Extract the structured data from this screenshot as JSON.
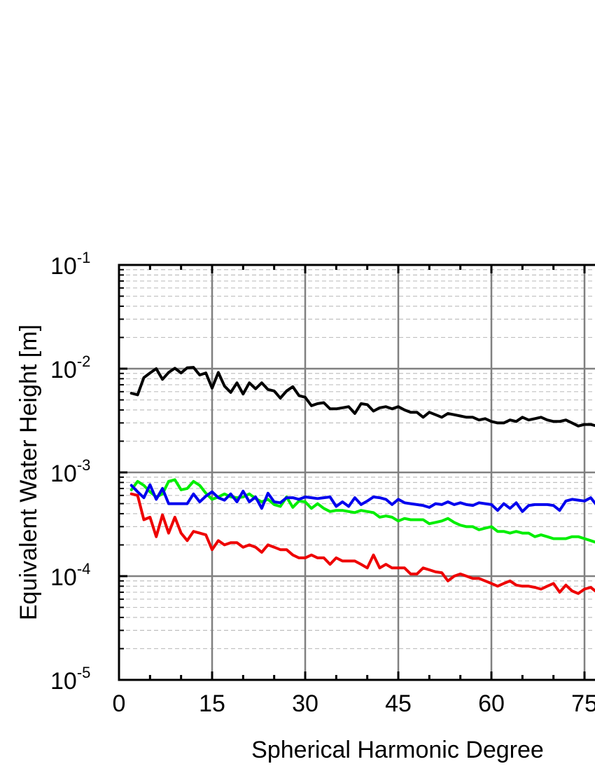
{
  "chart_data": {
    "type": "line",
    "title": "",
    "xlabel": "Spherical Harmonic Degree",
    "ylabel": "Equivalent Water Height [m]",
    "x_scale": "linear",
    "y_scale": "log",
    "xlim": [
      0,
      77
    ],
    "ylim": [
      1e-05,
      0.1
    ],
    "x_ticks": [
      {
        "value": 0,
        "label": "0"
      },
      {
        "value": 15,
        "label": "15"
      },
      {
        "value": 30,
        "label": "30"
      },
      {
        "value": 45,
        "label": "45"
      },
      {
        "value": 60,
        "label": "60"
      },
      {
        "value": 75,
        "label": "75"
      }
    ],
    "y_ticks": [
      {
        "value": 0.1,
        "base": "10",
        "exp": "-1"
      },
      {
        "value": 0.01,
        "base": "10",
        "exp": "-2"
      },
      {
        "value": 0.001,
        "base": "10",
        "exp": "-3"
      },
      {
        "value": 0.0001,
        "base": "10",
        "exp": "-4"
      },
      {
        "value": 1e-05,
        "base": "10",
        "exp": "-5"
      }
    ],
    "grid": {
      "major": true,
      "minor_y": true,
      "major_color": "#808080",
      "minor_color": "#c0c0c0"
    },
    "legend": "none",
    "series": [
      {
        "color": "#000000",
        "x": [
          2,
          3,
          4,
          5,
          6,
          7,
          8,
          9,
          10,
          11,
          12,
          13,
          14,
          15,
          16,
          17,
          18,
          19,
          20,
          21,
          22,
          23,
          24,
          25,
          26,
          27,
          28,
          29,
          30,
          31,
          32,
          33,
          34,
          35,
          36,
          37,
          38,
          39,
          40,
          41,
          42,
          43,
          44,
          45,
          46,
          47,
          48,
          49,
          50,
          51,
          52,
          53,
          54,
          55,
          56,
          57,
          58,
          59,
          60,
          61,
          62,
          63,
          64,
          65,
          66,
          67,
          68,
          69,
          70,
          71,
          72,
          73,
          74,
          75,
          76,
          77
        ],
        "values": [
          0.0058,
          0.0056,
          0.0082,
          0.0091,
          0.01,
          0.0079,
          0.0092,
          0.0101,
          0.0091,
          0.0102,
          0.0103,
          0.0087,
          0.0091,
          0.0065,
          0.0092,
          0.0068,
          0.0059,
          0.0073,
          0.0057,
          0.0073,
          0.0064,
          0.0073,
          0.0063,
          0.0061,
          0.0052,
          0.0061,
          0.0067,
          0.0055,
          0.0053,
          0.0044,
          0.0046,
          0.0047,
          0.0041,
          0.0041,
          0.0042,
          0.0043,
          0.0037,
          0.0046,
          0.0045,
          0.0039,
          0.0042,
          0.0043,
          0.0041,
          0.0043,
          0.004,
          0.0038,
          0.0038,
          0.0034,
          0.0038,
          0.0036,
          0.0034,
          0.0037,
          0.0036,
          0.0035,
          0.0034,
          0.0034,
          0.0032,
          0.0033,
          0.0031,
          0.003,
          0.003,
          0.0032,
          0.0031,
          0.0034,
          0.0032,
          0.0033,
          0.0034,
          0.0032,
          0.0031,
          0.0031,
          0.0032,
          0.003,
          0.0028,
          0.0029,
          0.0029,
          0.0028
        ]
      },
      {
        "color": "#00ee00",
        "x": [
          2,
          3,
          4,
          5,
          6,
          7,
          8,
          9,
          10,
          11,
          12,
          13,
          14,
          15,
          16,
          17,
          18,
          19,
          20,
          21,
          22,
          23,
          24,
          25,
          26,
          27,
          28,
          29,
          30,
          31,
          32,
          33,
          34,
          35,
          36,
          37,
          38,
          39,
          40,
          41,
          42,
          43,
          44,
          45,
          46,
          47,
          48,
          49,
          50,
          51,
          52,
          53,
          54,
          55,
          56,
          57,
          58,
          59,
          60,
          61,
          62,
          63,
          64,
          65,
          66,
          67,
          68,
          69,
          70,
          71,
          72,
          73,
          74,
          75,
          76,
          77
        ],
        "values": [
          0.00068,
          0.00082,
          0.00075,
          0.00065,
          0.00058,
          0.00062,
          0.00082,
          0.00085,
          0.00068,
          0.0007,
          0.00082,
          0.00075,
          0.00063,
          0.00055,
          0.00058,
          0.00062,
          0.00058,
          0.00057,
          0.00058,
          0.00062,
          0.00056,
          0.00052,
          0.00055,
          0.00049,
          0.00047,
          0.00058,
          0.00046,
          0.00053,
          0.00052,
          0.00045,
          0.0005,
          0.00045,
          0.00042,
          0.00043,
          0.00043,
          0.00042,
          0.00041,
          0.00043,
          0.00042,
          0.00041,
          0.00037,
          0.00038,
          0.00037,
          0.00034,
          0.00036,
          0.00035,
          0.00035,
          0.00035,
          0.00032,
          0.00033,
          0.00034,
          0.00036,
          0.00033,
          0.00031,
          0.0003,
          0.0003,
          0.00028,
          0.00029,
          0.0003,
          0.00027,
          0.00027,
          0.00026,
          0.00027,
          0.00026,
          0.00026,
          0.00024,
          0.00025,
          0.00024,
          0.00023,
          0.00023,
          0.00023,
          0.00024,
          0.00024,
          0.00023,
          0.00022,
          0.00021
        ]
      },
      {
        "color": "#0000ee",
        "x": [
          2,
          3,
          4,
          5,
          6,
          7,
          8,
          9,
          10,
          11,
          12,
          13,
          14,
          15,
          16,
          17,
          18,
          19,
          20,
          21,
          22,
          23,
          24,
          25,
          26,
          27,
          28,
          29,
          30,
          31,
          32,
          33,
          34,
          35,
          36,
          37,
          38,
          39,
          40,
          41,
          42,
          43,
          44,
          45,
          46,
          47,
          48,
          49,
          50,
          51,
          52,
          53,
          54,
          55,
          56,
          57,
          58,
          59,
          60,
          61,
          62,
          63,
          64,
          65,
          66,
          67,
          68,
          69,
          70,
          71,
          72,
          73,
          74,
          75,
          76,
          77
        ],
        "values": [
          0.00075,
          0.00065,
          0.00057,
          0.00076,
          0.00055,
          0.0007,
          0.0005,
          0.0005,
          0.0005,
          0.0005,
          0.00062,
          0.00052,
          0.00059,
          0.00065,
          0.00057,
          0.00054,
          0.00062,
          0.00052,
          0.00066,
          0.00052,
          0.00058,
          0.00045,
          0.00063,
          0.00052,
          0.00051,
          0.00057,
          0.00057,
          0.00055,
          0.00058,
          0.00057,
          0.00056,
          0.00057,
          0.00058,
          0.00047,
          0.00052,
          0.00047,
          0.00057,
          0.00049,
          0.00053,
          0.00058,
          0.00057,
          0.00055,
          0.00049,
          0.00055,
          0.00051,
          0.0005,
          0.00049,
          0.00048,
          0.00046,
          0.0005,
          0.00049,
          0.00052,
          0.00049,
          0.00051,
          0.00049,
          0.00048,
          0.00051,
          0.0005,
          0.00049,
          0.00043,
          0.0005,
          0.00045,
          0.00051,
          0.00042,
          0.00048,
          0.00049,
          0.00049,
          0.00049,
          0.00048,
          0.00043,
          0.00053,
          0.00055,
          0.00054,
          0.00053,
          0.00057,
          0.00048
        ]
      },
      {
        "color": "#ee0000",
        "x": [
          2,
          3,
          4,
          5,
          6,
          7,
          8,
          9,
          10,
          11,
          12,
          13,
          14,
          15,
          16,
          17,
          18,
          19,
          20,
          21,
          22,
          23,
          24,
          25,
          26,
          27,
          28,
          29,
          30,
          31,
          32,
          33,
          34,
          35,
          36,
          37,
          38,
          39,
          40,
          41,
          42,
          43,
          44,
          45,
          46,
          47,
          48,
          49,
          50,
          51,
          52,
          53,
          54,
          55,
          56,
          57,
          58,
          59,
          60,
          61,
          62,
          63,
          64,
          65,
          66,
          67,
          68,
          69,
          70,
          71,
          72,
          73,
          74,
          75,
          76,
          77
        ],
        "values": [
          0.00062,
          0.0006,
          0.00035,
          0.00037,
          0.00024,
          0.00039,
          0.00026,
          0.00037,
          0.00026,
          0.00022,
          0.00027,
          0.00026,
          0.00025,
          0.00018,
          0.00022,
          0.0002,
          0.00021,
          0.00021,
          0.00019,
          0.0002,
          0.00019,
          0.00017,
          0.0002,
          0.00019,
          0.00018,
          0.00018,
          0.00016,
          0.00015,
          0.00015,
          0.00016,
          0.00015,
          0.00015,
          0.00013,
          0.00015,
          0.00014,
          0.00014,
          0.00014,
          0.00013,
          0.00012,
          0.00016,
          0.00012,
          0.00013,
          0.00012,
          0.00012,
          0.00012,
          0.000105,
          0.000105,
          0.00012,
          0.000115,
          0.00011,
          0.000108,
          9e-05,
          0.0001,
          0.000105,
          0.0001,
          9.5e-05,
          9.5e-05,
          9e-05,
          8.5e-05,
          8e-05,
          8.5e-05,
          9e-05,
          8.2e-05,
          8e-05,
          8e-05,
          7.8e-05,
          7.5e-05,
          8e-05,
          8.5e-05,
          7e-05,
          8.2e-05,
          7.2e-05,
          6.8e-05,
          7.5e-05,
          7.8e-05,
          7e-05
        ]
      }
    ]
  }
}
